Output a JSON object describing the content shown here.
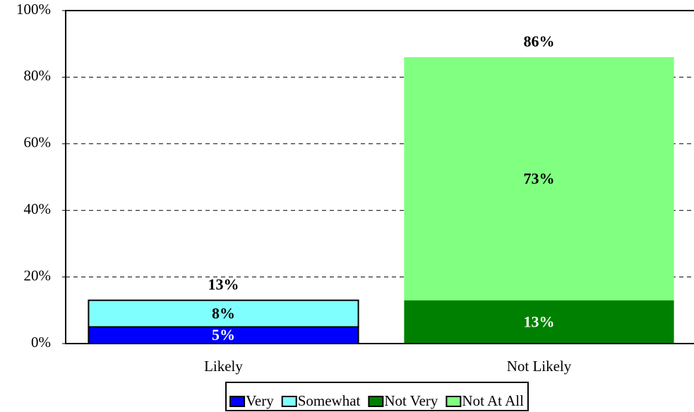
{
  "chart_data": {
    "type": "stacked_bar",
    "categories": [
      "Likely",
      "Not Likely"
    ],
    "series": [
      {
        "name": "Very",
        "color": "#0000ff",
        "edgecolor": "#000000",
        "label_color": "#ffffff",
        "values": [
          5,
          null
        ],
        "value_labels": [
          "5%",
          null
        ]
      },
      {
        "name": "Somewhat",
        "color": "#80ffff",
        "edgecolor": "#000000",
        "label_color": "#000000",
        "values": [
          8,
          null
        ],
        "value_labels": [
          "8%",
          null
        ]
      },
      {
        "name": "Not Very",
        "color": "#008000",
        "label_color": "#ffffff",
        "values": [
          null,
          13
        ],
        "value_labels": [
          null,
          "13%"
        ]
      },
      {
        "name": "Not At All",
        "color": "#80ff80",
        "label_color": "#000000",
        "values": [
          null,
          73
        ],
        "value_labels": [
          null,
          "73%"
        ]
      }
    ],
    "totals": [
      13,
      86
    ],
    "total_labels": [
      "13%",
      "86%"
    ],
    "ylim": [
      0,
      100
    ],
    "yticks": [
      {
        "value": 0,
        "label": "0%"
      },
      {
        "value": 20,
        "label": "20%"
      },
      {
        "value": 40,
        "label": "40%"
      },
      {
        "value": 60,
        "label": "60%"
      },
      {
        "value": 80,
        "label": "80%"
      },
      {
        "value": 100,
        "label": "100%"
      }
    ],
    "grid": true,
    "legend": "bottom"
  }
}
